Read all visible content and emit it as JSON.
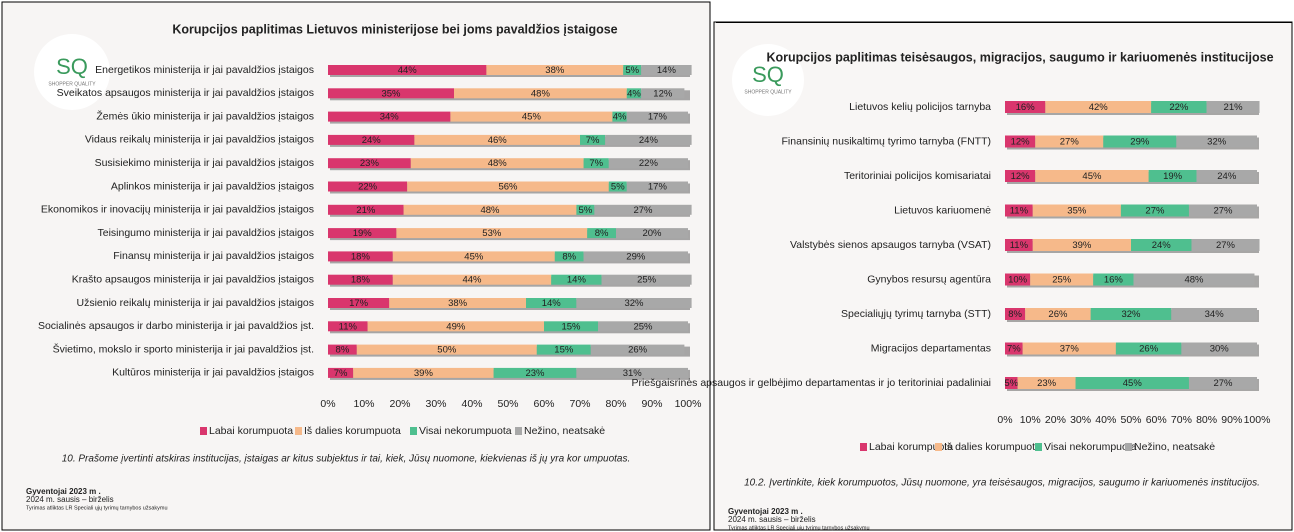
{
  "chart_data": [
    {
      "type": "stacked-bar",
      "orientation": "horizontal",
      "title": "Korupcijos paplitimas Lietuvos ministerijose bei joms pavaldžios įstaigose",
      "logo": "SQ",
      "logo_subtitle": "SHOPPER QUALITY",
      "categories": [
        "Energetikos ministerija ir jai pavaldžios įstaigos",
        "Sveikatos apsaugos ministerija ir jai pavaldžios įstaigos",
        "Žemės ūkio ministerija ir jai pavaldžios įstaigos",
        "Vidaus reikalų ministerija ir jai pavaldžios įstaigos",
        "Susisiekimo ministerija ir jai pavaldžios įstaigos",
        "Aplinkos ministerija ir jai pavaldžios įstaigos",
        "Ekonomikos ir inovacijų ministerija ir jai pavaldžios įstaigos",
        "Teisingumo ministerija ir jai pavaldžios įstaigos",
        "Finansų ministerija ir jai pavaldžios įstaigos",
        "Krašto apsaugos ministerija ir jai pavaldžios įstaigos",
        "Užsienio reikalų ministerija ir jai pavaldžios įstaigos",
        "Socialinės apsaugos ir darbo ministerija ir jai pavaldžios įst.",
        "Švietimo, mokslo ir sporto ministerija ir jai pavaldžios įst.",
        "Kultūros ministerija ir jai pavaldžios įstaigos"
      ],
      "series": [
        {
          "name": "Labai korumpuota",
          "color": "#d9366d",
          "values": [
            44,
            35,
            34,
            24,
            23,
            22,
            21,
            19,
            18,
            18,
            17,
            11,
            8,
            7
          ],
          "value_labels": [
            "44%",
            "35%",
            "34%",
            "24%",
            "23%",
            "22%",
            "21%",
            "19%",
            "18%",
            "18%",
            "17%",
            "11%",
            "8%",
            "7%"
          ]
        },
        {
          "name": "Iš dalies korumpuota",
          "color": "#f6b98a",
          "values": [
            38,
            48,
            45,
            46,
            48,
            56,
            48,
            53,
            45,
            44,
            38,
            49,
            50,
            39
          ],
          "value_labels": [
            "38%",
            "48%",
            "45%",
            "46%",
            "48%",
            "56%",
            "48%",
            "53%",
            "45%",
            "44%",
            "38%",
            "49%",
            "50%",
            "39%"
          ]
        },
        {
          "name": "Visai nekorumpuota",
          "color": "#4fbf8f",
          "values": [
            5,
            4,
            4,
            7,
            7,
            5,
            5,
            8,
            8,
            14,
            14,
            15,
            15,
            23
          ],
          "value_labels": [
            "5%",
            "4%",
            "4%",
            "7%",
            "7%",
            "5%",
            "5%",
            "8%",
            "8%",
            "14%",
            "14%",
            "15%",
            "15%",
            "23%"
          ]
        },
        {
          "name": "Nežino, neatsakė",
          "color": "#a8a8a8",
          "values": [
            14,
            12,
            17,
            24,
            22,
            17,
            27,
            20,
            29,
            25,
            32,
            25,
            26,
            31
          ],
          "value_labels": [
            "14%",
            "12%",
            "17%",
            "24%",
            "22%",
            "17%",
            "27%",
            "20%",
            "29%",
            "25%",
            "32%",
            "25%",
            "26%",
            "31%"
          ]
        }
      ],
      "xlim": [
        0,
        100
      ],
      "xticks": [
        {
          "value": 0,
          "label": "0%"
        },
        {
          "value": 10,
          "label": "10%"
        },
        {
          "value": 20,
          "label": "20%"
        },
        {
          "value": 30,
          "label": "30%"
        },
        {
          "value": 40,
          "label": "40%"
        },
        {
          "value": 50,
          "label": "50%"
        },
        {
          "value": 60,
          "label": "60%"
        },
        {
          "value": 70,
          "label": "70%"
        },
        {
          "value": 80,
          "label": "80%"
        },
        {
          "value": 90,
          "label": "90%"
        },
        {
          "value": 100,
          "label": "100%"
        }
      ],
      "legend": "bottom",
      "question": "10. Prašome įvertinti atskiras institucijas, įstaigas ar kitus subjektus ir tai, kiek, Jūsų nuomone, kiekvienas iš jų yra kor   umpuotas.",
      "footer": [
        "Gyventojai   2023 m .",
        "2024 m.  sausis  – birželis",
        "Tyrimas   atliktas   LR  Speciali  ųjų tyrimų tarnybos užsakymu"
      ]
    },
    {
      "type": "stacked-bar",
      "orientation": "horizontal",
      "title": "Korupcijos paplitimas teisėsaugos, migracijos, saugumo ir kariuomenės institucijose",
      "logo": "SQ",
      "logo_subtitle": "SHOPPER QUALITY",
      "categories": [
        "Lietuvos kelių policijos tarnyba",
        "Finansinių nusikaltimų tyrimo tarnyba (FNTT)",
        "Teritoriniai policijos komisariatai",
        "Lietuvos kariuomenė",
        "Valstybės sienos apsaugos tarnyba (VSAT)",
        "Gynybos resursų agentūra",
        "Specialiųjų tyrimų tarnyba (STT)",
        "Migracijos departamentas",
        "Priešgaisrinės apsaugos ir gelbėjimo departamentas ir jo teritoriniai padaliniai"
      ],
      "series": [
        {
          "name": "Labai korumpuota",
          "color": "#d9366d",
          "values": [
            16,
            12,
            12,
            11,
            11,
            10,
            8,
            7,
            5
          ],
          "value_labels": [
            "16%",
            "12%",
            "12%",
            "11%",
            "11%",
            "10%",
            "8%",
            "7%",
            "5%"
          ]
        },
        {
          "name": "Iš dalies korumpuota",
          "color": "#f6b98a",
          "values": [
            42,
            27,
            45,
            35,
            39,
            25,
            26,
            37,
            23
          ],
          "value_labels": [
            "42%",
            "27%",
            "45%",
            "35%",
            "39%",
            "25%",
            "26%",
            "37%",
            "23%"
          ]
        },
        {
          "name": "Visai nekorumpuota",
          "color": "#4fbf8f",
          "values": [
            22,
            29,
            19,
            27,
            24,
            16,
            32,
            26,
            45
          ],
          "value_labels": [
            "22%",
            "29%",
            "19%",
            "27%",
            "24%",
            "16%",
            "32%",
            "26%",
            "45%"
          ]
        },
        {
          "name": "Nežino, neatsakė",
          "color": "#a8a8a8",
          "values": [
            21,
            32,
            24,
            27,
            27,
            48,
            34,
            30,
            27
          ],
          "value_labels": [
            "21%",
            "32%",
            "24%",
            "27%",
            "27%",
            "48%",
            "34%",
            "30%",
            "27%"
          ]
        }
      ],
      "xlim": [
        0,
        100
      ],
      "xticks": [
        {
          "value": 0,
          "label": "0%"
        },
        {
          "value": 10,
          "label": "10%"
        },
        {
          "value": 20,
          "label": "20%"
        },
        {
          "value": 30,
          "label": "30%"
        },
        {
          "value": 40,
          "label": "40%"
        },
        {
          "value": 50,
          "label": "50%"
        },
        {
          "value": 60,
          "label": "60%"
        },
        {
          "value": 70,
          "label": "70%"
        },
        {
          "value": 80,
          "label": "80%"
        },
        {
          "value": 90,
          "label": "90%"
        },
        {
          "value": 100,
          "label": "100%"
        }
      ],
      "legend": "bottom",
      "question": "10.2. Įvertinkite, kiek korumpuotos, Jūsų nuomone, yra teisėsaugos, migracijos, saugumo ir kariuomenės institucijos.",
      "footer": [
        "Gyventojai   2023 m .",
        "2024 m.  sausis  – birželis",
        "Tyrimas   atliktas   LR  Speciali  ųjų tyrimų tarnybos užsakymu"
      ]
    }
  ]
}
